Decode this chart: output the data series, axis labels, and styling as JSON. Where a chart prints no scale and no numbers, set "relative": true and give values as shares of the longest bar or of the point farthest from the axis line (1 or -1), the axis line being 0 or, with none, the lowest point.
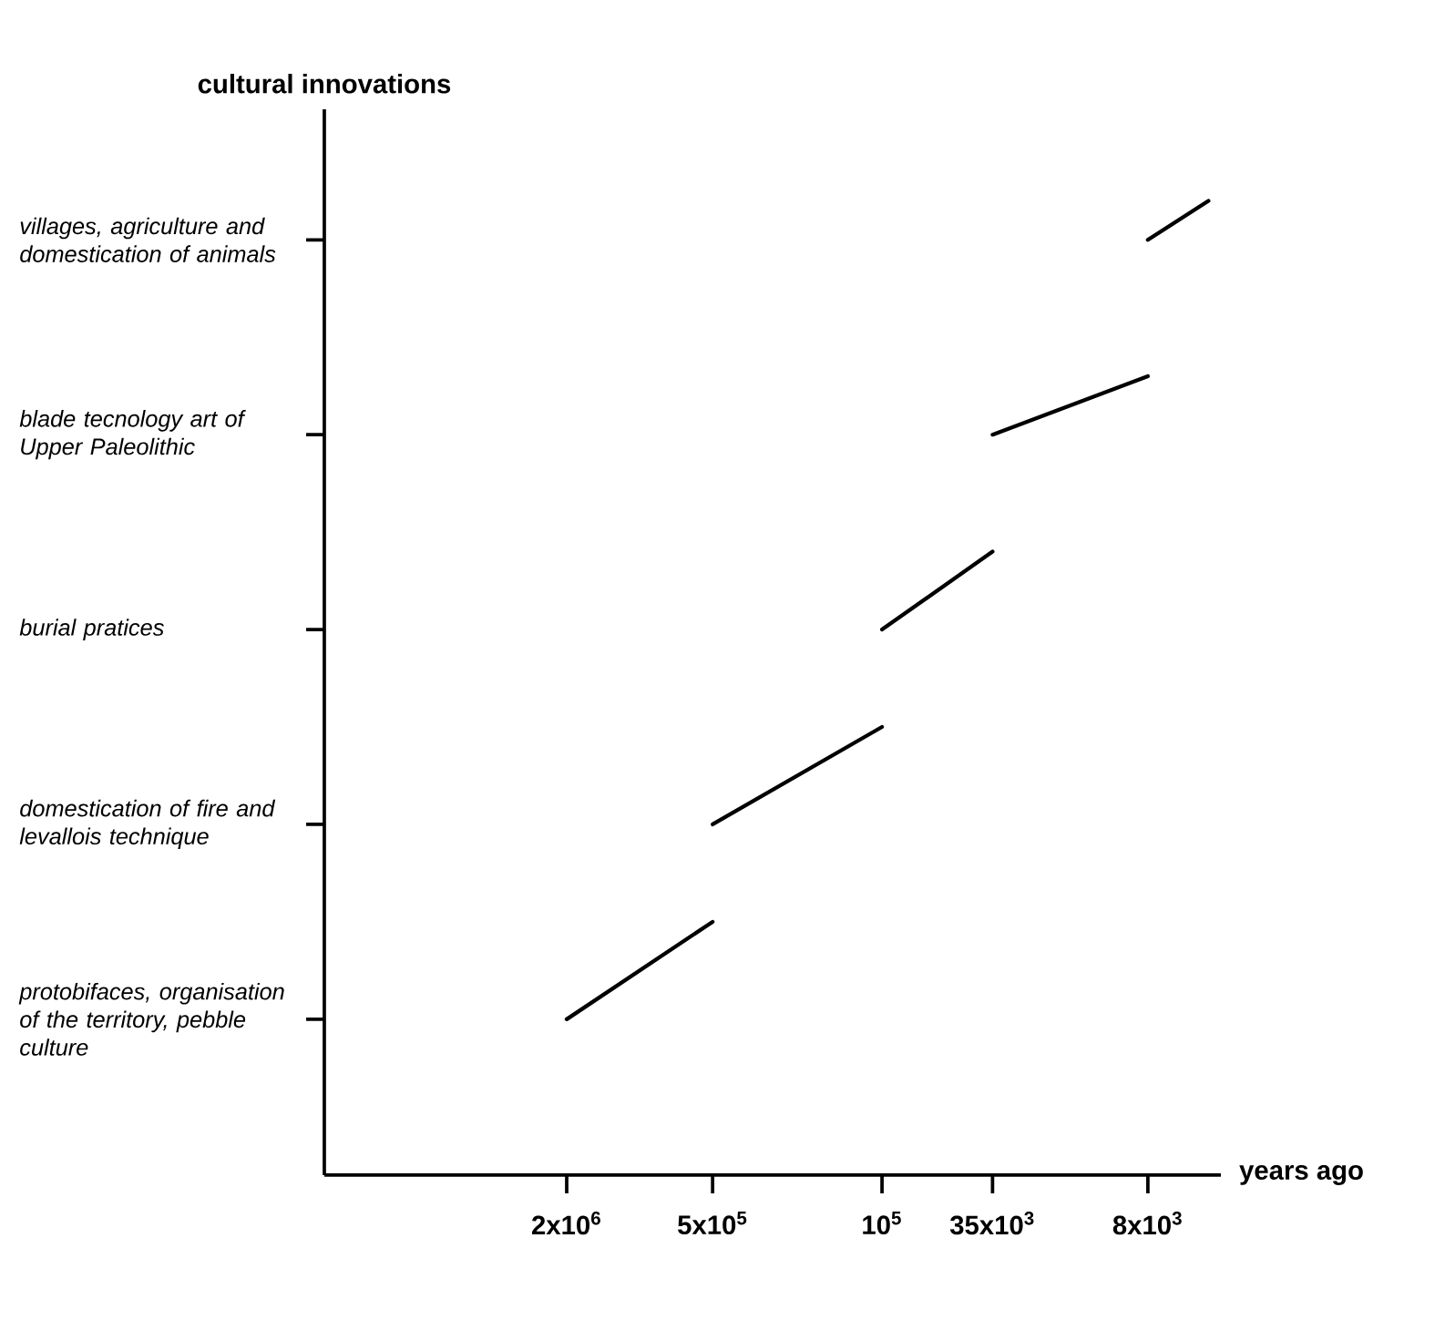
{
  "chart_data": {
    "type": "line",
    "ylabel": "cultural innovations",
    "xlabel": "years ago",
    "log": "x",
    "marker": "none",
    "line_style": "solid",
    "relative": true,
    "xlim": [
      20000000,
      4000
    ],
    "xticks": [
      {
        "value": 2000000,
        "label": "2x10$^{6}$"
      },
      {
        "value": 500000,
        "label": "5x10$^{5}$"
      },
      {
        "value": 100000,
        "label": "10$^{5}$"
      },
      {
        "value": 35000,
        "label": "35x10$^{3}$"
      },
      {
        "value": 8000,
        "label": "8x10$^{3}$"
      }
    ],
    "annotations": [
      "protobifaces, organisation of the territory, pebble culture",
      "domestication of fire and levallois technique",
      "burial pratices",
      "blade tecnology art of Upper Paleolithic",
      "villages, agriculture and domestication of animals"
    ],
    "series": [
      {
        "color": "#000000",
        "x": [
          2000000,
          500000
        ],
        "values": [
          0.16,
          0.26
        ]
      },
      {
        "color": "#000000",
        "x": [
          500000,
          100000
        ],
        "values": [
          0.36,
          0.46
        ]
      },
      {
        "color": "#000000",
        "x": [
          100000,
          35000
        ],
        "values": [
          0.56,
          0.64
        ]
      },
      {
        "color": "#000000",
        "x": [
          35000,
          8000
        ],
        "values": [
          0.76,
          0.82
        ]
      },
      {
        "color": "#000000",
        "x": [
          8000,
          4500
        ],
        "values": [
          0.96,
          1
        ]
      }
    ]
  }
}
